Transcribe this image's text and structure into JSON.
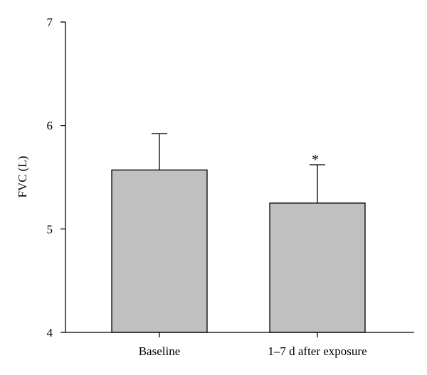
{
  "chart_data": {
    "type": "bar",
    "categories": [
      "Baseline",
      "1–7 d after exposure"
    ],
    "values": [
      5.57,
      5.25
    ],
    "error_upper": [
      5.92,
      5.62
    ],
    "annotations": [
      "",
      "*"
    ],
    "ylabel": "FVC (L)",
    "ylim": [
      4,
      7
    ],
    "yticks": [
      4,
      5,
      6,
      7
    ],
    "grid": false,
    "bar_color": "#c0c0c0"
  }
}
